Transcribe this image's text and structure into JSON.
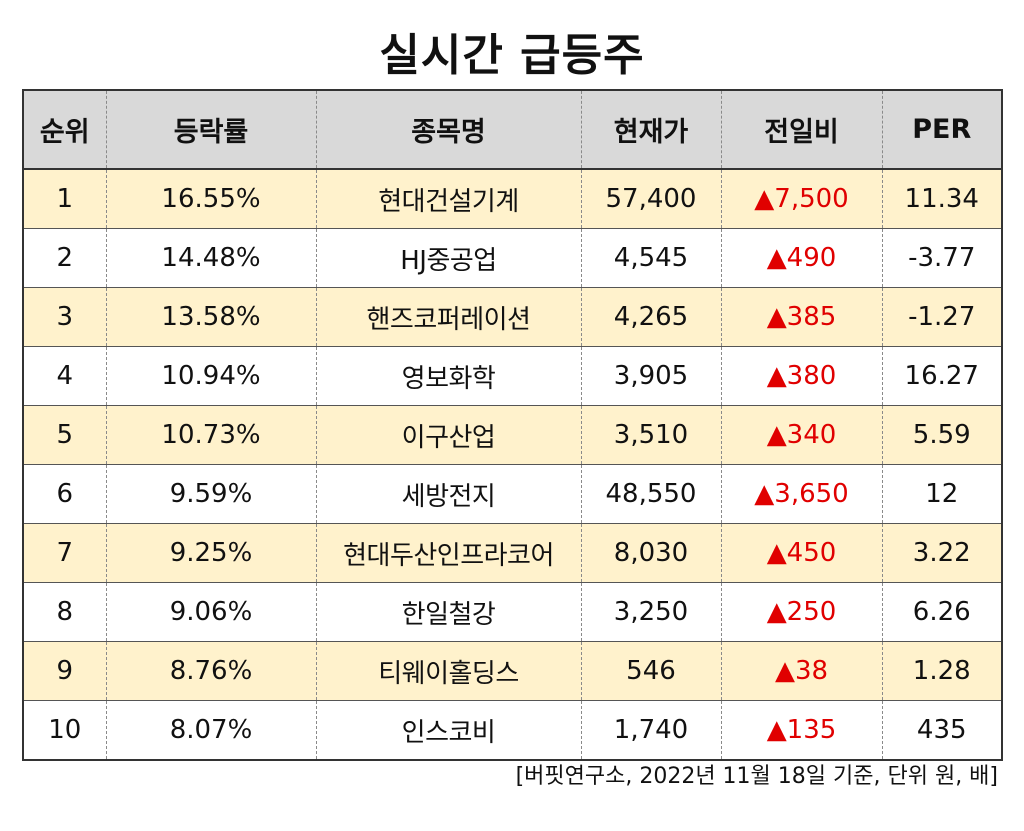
{
  "title": "실시간 급등주",
  "headers": [
    "순위",
    "등락률",
    "종목명",
    "현재가",
    "전일비",
    "PER"
  ],
  "colors": {
    "header_bg": "#d9d9d9",
    "odd_row_bg": "#fff2cc",
    "even_row_bg": "#ffffff",
    "rise_color": "#e00000"
  },
  "rows": [
    {
      "rank": "1",
      "rate": "16.55%",
      "name": "현대건설기계",
      "price": "57,400",
      "diff": "▲7,500",
      "per": "11.34"
    },
    {
      "rank": "2",
      "rate": "14.48%",
      "name": "HJ중공업",
      "price": "4,545",
      "diff": "▲490",
      "per": "-3.77"
    },
    {
      "rank": "3",
      "rate": "13.58%",
      "name": "핸즈코퍼레이션",
      "price": "4,265",
      "diff": "▲385",
      "per": "-1.27"
    },
    {
      "rank": "4",
      "rate": "10.94%",
      "name": "영보화학",
      "price": "3,905",
      "diff": "▲380",
      "per": "16.27"
    },
    {
      "rank": "5",
      "rate": "10.73%",
      "name": "이구산업",
      "price": "3,510",
      "diff": "▲340",
      "per": "5.59"
    },
    {
      "rank": "6",
      "rate": "9.59%",
      "name": "세방전지",
      "price": "48,550",
      "diff": "▲3,650",
      "per": "12"
    },
    {
      "rank": "7",
      "rate": "9.25%",
      "name": "현대두산인프라코어",
      "price": "8,030",
      "diff": "▲450",
      "per": "3.22"
    },
    {
      "rank": "8",
      "rate": "9.06%",
      "name": "한일철강",
      "price": "3,250",
      "diff": "▲250",
      "per": "6.26"
    },
    {
      "rank": "9",
      "rate": "8.76%",
      "name": "티웨이홀딩스",
      "price": "546",
      "diff": "▲38",
      "per": "1.28"
    },
    {
      "rank": "10",
      "rate": "8.07%",
      "name": "인스코비",
      "price": "1,740",
      "diff": "▲135",
      "per": "435"
    }
  ],
  "footnote": "[버핏연구소, 2022년 11월 18일 기준, 단위 원, 배]"
}
